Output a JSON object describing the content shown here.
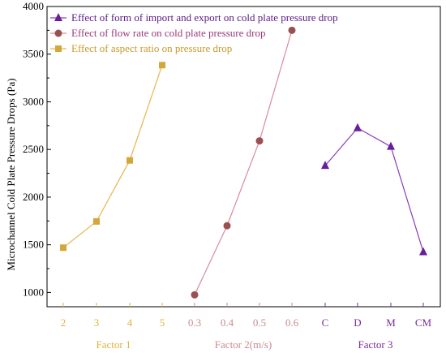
{
  "chart_data": {
    "type": "line",
    "ylabel": "Microchannel Cold Plate Pressure Drops (Pa)",
    "ylim": [
      850,
      4000
    ],
    "yticks": [
      1000,
      1500,
      2000,
      2500,
      3000,
      3500,
      4000
    ],
    "grid": false,
    "legend_position": "top-left",
    "groups": [
      {
        "label": "Factor 1",
        "color": "#e0b33a",
        "categories": [
          "2",
          "3",
          "4",
          "5"
        ]
      },
      {
        "label": "Factor 2(m/s)",
        "color": "#c98a8e",
        "categories": [
          "0.3",
          "0.4",
          "0.5",
          "0.6"
        ]
      },
      {
        "label": "Factor 3",
        "color": "#7a2aa0",
        "categories": [
          "C",
          "D",
          "M",
          "CM"
        ]
      }
    ],
    "series": [
      {
        "name": "Effect of form of import and export on cold plate pressure drop",
        "group": 2,
        "marker": "triangle",
        "line_color": "#8a3db8",
        "marker_color": "#6a1f9a",
        "values": [
          2330,
          2725,
          2530,
          1425
        ]
      },
      {
        "name": "Effect of flow rate on cold plate pressure drop",
        "group": 1,
        "marker": "circle",
        "line_color": "#d98a9a",
        "marker_color": "#9a5050",
        "values": [
          975,
          1700,
          2590,
          3750
        ]
      },
      {
        "name": "Effect of aspect ratio on pressure drop",
        "group": 0,
        "marker": "square",
        "line_color": "#e6b64a",
        "marker_color": "#d4a73a",
        "values": [
          1470,
          1745,
          2385,
          3385
        ]
      }
    ]
  }
}
